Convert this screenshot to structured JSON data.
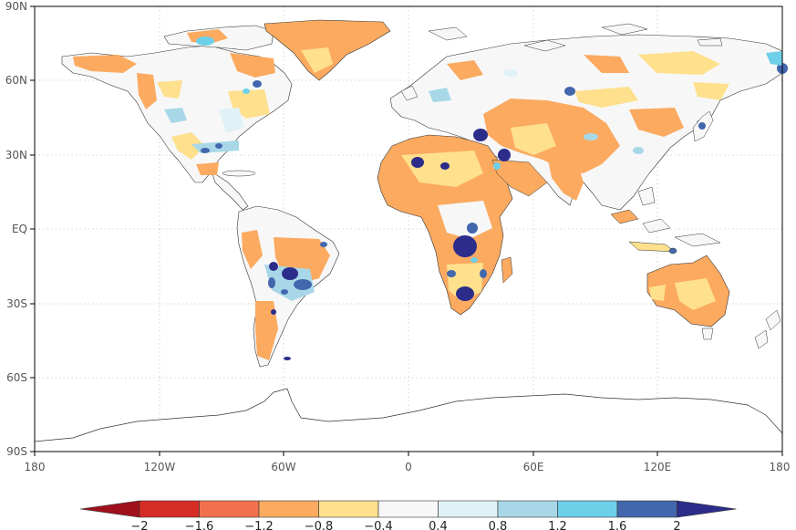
{
  "map": {
    "y_axis_labels": [
      "90N",
      "60N",
      "30N",
      "EQ",
      "30S",
      "60S",
      "90S"
    ],
    "x_axis_labels": [
      "180",
      "120W",
      "60W",
      "0",
      "60E",
      "120E",
      "180"
    ]
  },
  "colorbar": {
    "tick_labels": [
      "−2",
      "−1.6",
      "−1.2",
      "−0.8",
      "−0.4",
      "0.4",
      "0.8",
      "1.2",
      "1.6",
      "2"
    ],
    "colors": {
      "under": "#a0101c",
      "bins": [
        "#d62c26",
        "#f1714e",
        "#fbaa60",
        "#fee08d",
        "#f7f7f7",
        "#e0f1f7",
        "#a8d8e8",
        "#6dd0e8",
        "#4367ad"
      ],
      "over": "#2c2c8a"
    }
  },
  "palette": {
    "land": "#f7f7f7",
    "orange_light": "#fee08d",
    "orange": "#fbaa60",
    "blue_light": "#e0f1f7",
    "blue_mid": "#a8d8e8",
    "cyan": "#6dd0e8",
    "blue": "#4367ad",
    "navy": "#2c2c8a"
  }
}
